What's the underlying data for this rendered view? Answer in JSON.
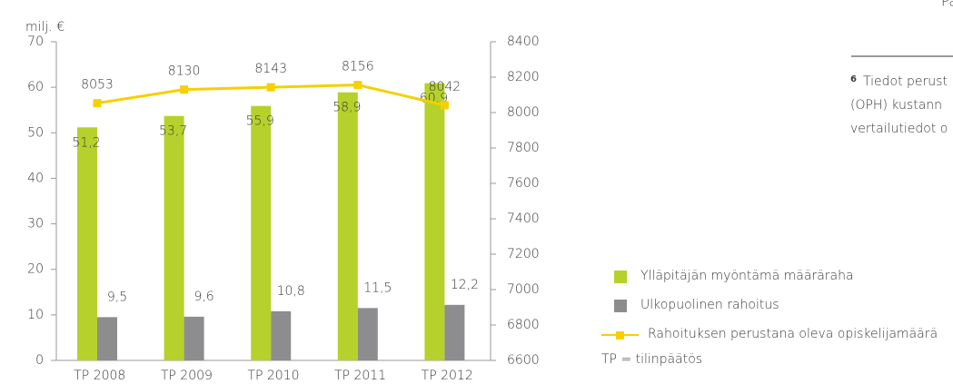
{
  "page": {
    "header": "Päätöksenteko",
    "footnote": {
      "marker": "6",
      "lines": [
        "Tiedot perust",
        "(OPH) kustann",
        "vertailutiedot o"
      ]
    }
  },
  "chart_data": {
    "type": "combo",
    "y_label": "milj. €",
    "categories": [
      "TP 2008",
      "TP 2009",
      "TP 2010",
      "TP 2011",
      "TP 2012"
    ],
    "ylim": [
      0,
      70
    ],
    "yticks": [
      0,
      10,
      20,
      30,
      40,
      50,
      60,
      70
    ],
    "y2lim": [
      6600,
      8400
    ],
    "y2ticks": [
      6600,
      6800,
      7000,
      7200,
      7400,
      7600,
      7800,
      8000,
      8200,
      8400
    ],
    "series": [
      {
        "name": "Ylläpitäjän myöntämä määräraha",
        "type": "bar",
        "color": "#b6d12b",
        "values": [
          51.2,
          53.7,
          55.9,
          58.9,
          60.9
        ],
        "value_labels": [
          "51,2",
          "53,7",
          "55,9",
          "58,9",
          "60,9"
        ]
      },
      {
        "name": "Ulkopuolinen rahoitus",
        "type": "bar",
        "color": "#8d8d90",
        "values": [
          9.5,
          9.6,
          10.8,
          11.5,
          12.2
        ],
        "value_labels": [
          "9,5",
          "9,6",
          "10,8",
          "11,5",
          "12,2"
        ]
      },
      {
        "name": "Rahoituksen perustana oleva opiskelijamäärä",
        "type": "line",
        "axis": "y2",
        "color": "#f6d000",
        "values": [
          8053,
          8130,
          8143,
          8156,
          8042
        ]
      }
    ],
    "note": "TP = tilinpäätös"
  }
}
